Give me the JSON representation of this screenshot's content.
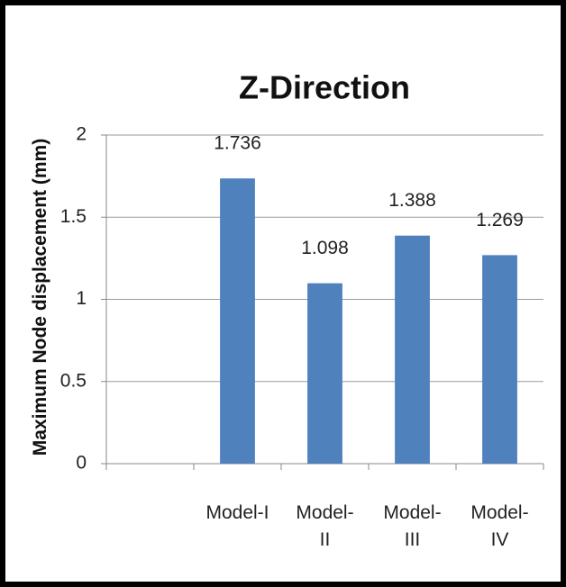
{
  "chart_data": {
    "type": "bar",
    "title": "Z-Direction",
    "y_label": "Maximum Node displacement (mm)",
    "categories": [
      null,
      "Model-I",
      "Model-II",
      "Model-III",
      "Model-IV"
    ],
    "values": [
      null,
      1.736,
      1.098,
      1.388,
      1.269
    ],
    "color": "#4f81bd",
    "ylim": [
      0,
      2
    ],
    "yticks": [
      0,
      0.5,
      1,
      1.5,
      2
    ],
    "grid": true,
    "data_labels": true
  }
}
